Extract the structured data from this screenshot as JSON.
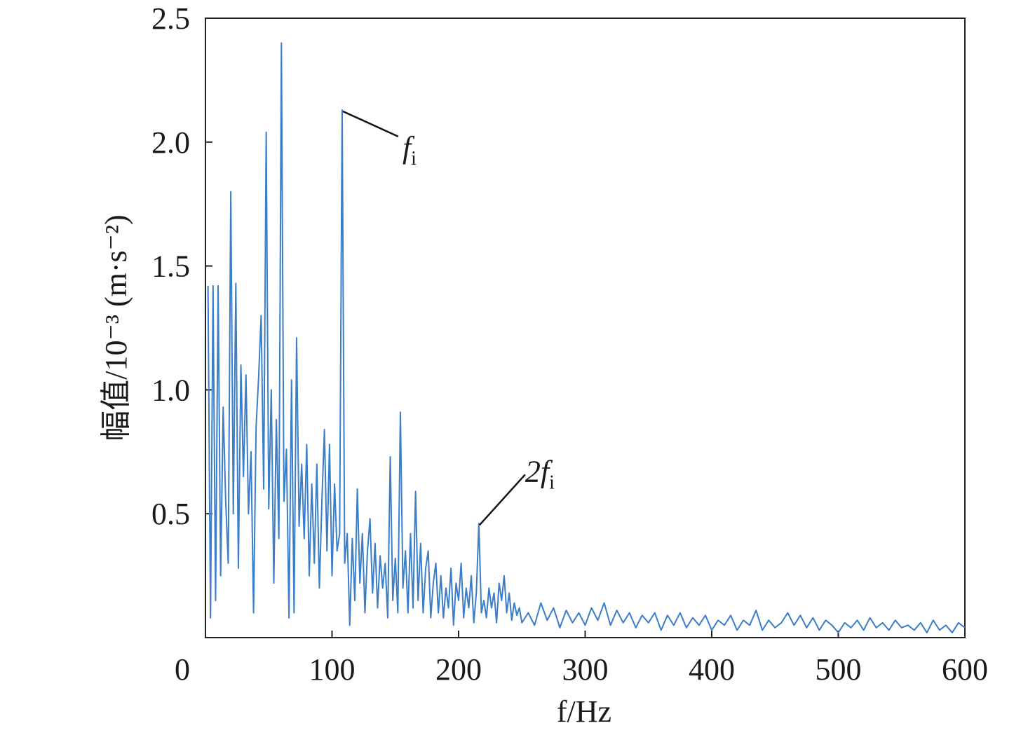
{
  "chart_data": {
    "type": "line",
    "xlabel": "f/Hz",
    "ylabel": "幅值/10⁻³ (m·s⁻²)",
    "color": "#3b7dc8",
    "xlim": [
      0,
      600
    ],
    "xticks": [
      0,
      100,
      200,
      300,
      400,
      500,
      600
    ],
    "ylim": [
      0,
      2.5
    ],
    "yticks": [
      0.5,
      {
        "value": 1,
        "label": "1.0"
      },
      1.5,
      {
        "value": 2,
        "label": "2.0"
      },
      2.5
    ],
    "annotations": [
      {
        "text": "f",
        "subscript": "i",
        "x": 108,
        "y": 2.13
      },
      {
        "text": "2f",
        "subscript": "i",
        "x": 216,
        "y": 0.46
      }
    ],
    "x": [
      2,
      4,
      6,
      8,
      10,
      12,
      14,
      16,
      18,
      20,
      22,
      24,
      26,
      28,
      30,
      32,
      34,
      36,
      38,
      40,
      42,
      44,
      46,
      48,
      50,
      52,
      54,
      56,
      58,
      60,
      62,
      64,
      66,
      68,
      70,
      72,
      74,
      76,
      78,
      80,
      82,
      84,
      86,
      88,
      90,
      92,
      94,
      96,
      98,
      100,
      102,
      104,
      106,
      108,
      110,
      112,
      114,
      116,
      118,
      120,
      122,
      124,
      126,
      128,
      130,
      132,
      134,
      136,
      138,
      140,
      142,
      144,
      146,
      148,
      150,
      152,
      154,
      156,
      158,
      160,
      162,
      164,
      166,
      168,
      170,
      172,
      174,
      176,
      178,
      180,
      182,
      184,
      186,
      188,
      190,
      192,
      194,
      196,
      198,
      200,
      202,
      204,
      206,
      208,
      210,
      212,
      214,
      216,
      218,
      220,
      222,
      224,
      226,
      228,
      230,
      232,
      234,
      236,
      238,
      240,
      242,
      244,
      246,
      248,
      250,
      255,
      260,
      265,
      270,
      275,
      280,
      285,
      290,
      295,
      300,
      305,
      310,
      315,
      320,
      325,
      330,
      335,
      340,
      345,
      350,
      355,
      360,
      365,
      370,
      375,
      380,
      385,
      390,
      395,
      400,
      405,
      410,
      415,
      420,
      425,
      430,
      435,
      440,
      445,
      450,
      455,
      460,
      465,
      470,
      475,
      480,
      485,
      490,
      495,
      500,
      505,
      510,
      515,
      520,
      525,
      530,
      535,
      540,
      545,
      550,
      555,
      560,
      565,
      570,
      575,
      580,
      585,
      590,
      595,
      600
    ],
    "series": [
      {
        "values": [
          1.42,
          0.08,
          1.42,
          0.15,
          1.42,
          0.25,
          0.93,
          0.55,
          0.3,
          1.8,
          0.5,
          1.43,
          0.28,
          1.1,
          0.65,
          1.06,
          0.5,
          0.75,
          0.1,
          0.85,
          1.05,
          1.3,
          0.6,
          2.04,
          0.52,
          1.0,
          0.22,
          0.88,
          0.4,
          2.4,
          0.55,
          0.76,
          0.08,
          1.04,
          0.1,
          1.21,
          0.45,
          0.7,
          0.4,
          0.78,
          0.25,
          0.62,
          0.3,
          0.7,
          0.2,
          0.55,
          0.84,
          0.35,
          0.78,
          0.25,
          0.62,
          0.35,
          0.42,
          2.13,
          0.3,
          0.42,
          0.05,
          0.4,
          0.15,
          0.6,
          0.22,
          0.42,
          0.1,
          0.35,
          0.48,
          0.18,
          0.38,
          0.12,
          0.33,
          0.2,
          0.3,
          0.08,
          0.73,
          0.15,
          0.32,
          0.1,
          0.91,
          0.2,
          0.35,
          0.1,
          0.42,
          0.12,
          0.59,
          0.15,
          0.38,
          0.1,
          0.28,
          0.35,
          0.08,
          0.22,
          0.3,
          0.1,
          0.25,
          0.08,
          0.2,
          0.12,
          0.28,
          0.05,
          0.22,
          0.15,
          0.3,
          0.08,
          0.2,
          0.12,
          0.25,
          0.06,
          0.18,
          0.46,
          0.1,
          0.15,
          0.08,
          0.2,
          0.12,
          0.18,
          0.06,
          0.22,
          0.15,
          0.25,
          0.1,
          0.18,
          0.07,
          0.14,
          0.09,
          0.12,
          0.06,
          0.1,
          0.05,
          0.14,
          0.07,
          0.12,
          0.04,
          0.11,
          0.06,
          0.1,
          0.05,
          0.12,
          0.07,
          0.14,
          0.05,
          0.11,
          0.06,
          0.1,
          0.04,
          0.09,
          0.06,
          0.1,
          0.03,
          0.09,
          0.05,
          0.1,
          0.04,
          0.08,
          0.05,
          0.09,
          0.03,
          0.07,
          0.05,
          0.09,
          0.03,
          0.07,
          0.05,
          0.11,
          0.03,
          0.07,
          0.04,
          0.06,
          0.1,
          0.05,
          0.09,
          0.04,
          0.08,
          0.03,
          0.07,
          0.05,
          0.02,
          0.06,
          0.04,
          0.07,
          0.03,
          0.08,
          0.04,
          0.06,
          0.03,
          0.07,
          0.04,
          0.05,
          0.03,
          0.06,
          0.02,
          0.07,
          0.03,
          0.05,
          0.02,
          0.06,
          0.04
        ]
      }
    ]
  }
}
